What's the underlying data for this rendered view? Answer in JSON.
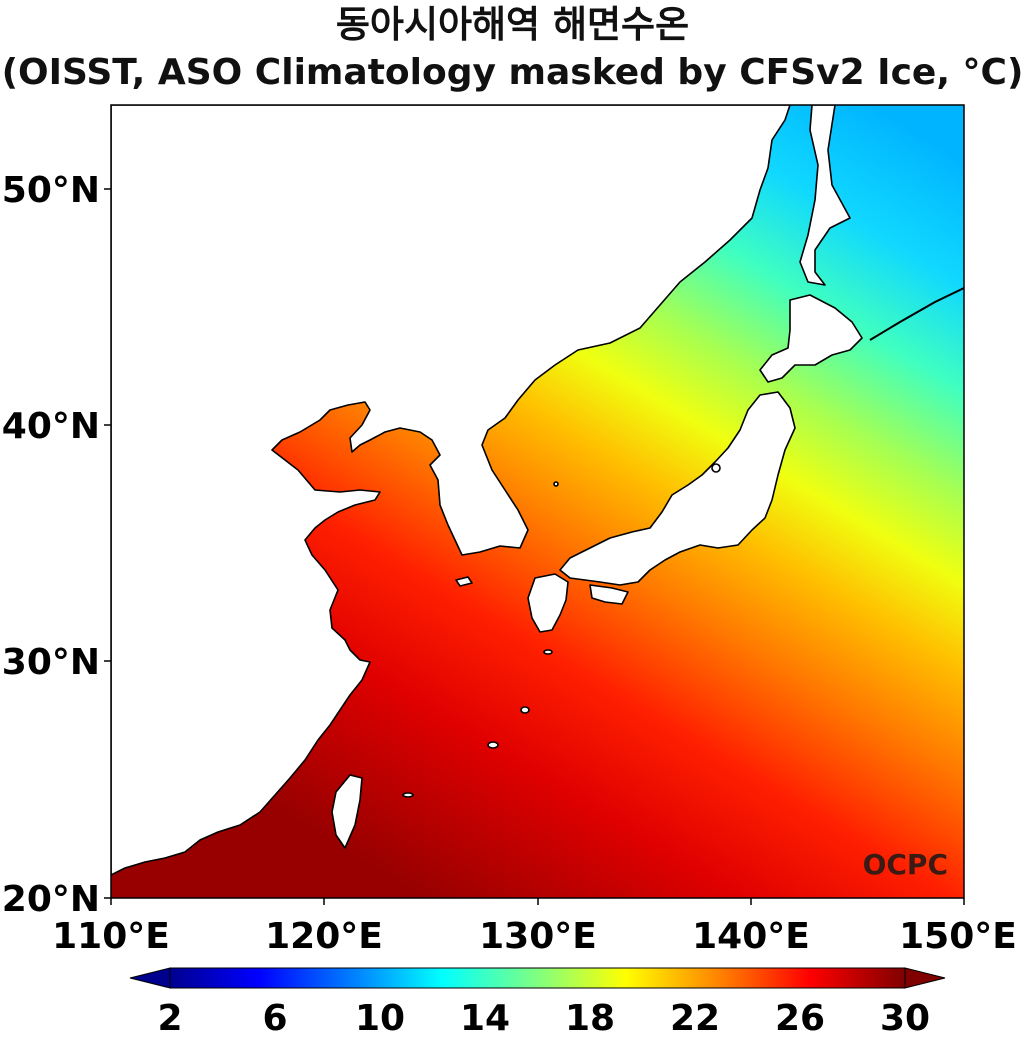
{
  "map": {
    "title_line1": "동아시아해역 해면수온",
    "title_line2": "(OISST, ASO Climatology masked by CFSv2 Ice, °C)",
    "lat_labels": [
      "50°N",
      "40°N",
      "30°N",
      "20°N"
    ],
    "lon_labels": [
      "110°E",
      "120°E",
      "130°E",
      "140°E",
      "150°E"
    ],
    "credit": "OCPC",
    "colorbar": {
      "ticks": [
        "2",
        "6",
        "10",
        "14",
        "18",
        "22",
        "26",
        "30"
      ],
      "colors": [
        "#00008f",
        "#0000ff",
        "#0080ff",
        "#00ffff",
        "#80ff80",
        "#ffff00",
        "#ff8000",
        "#ff0000",
        "#800000"
      ]
    }
  }
}
